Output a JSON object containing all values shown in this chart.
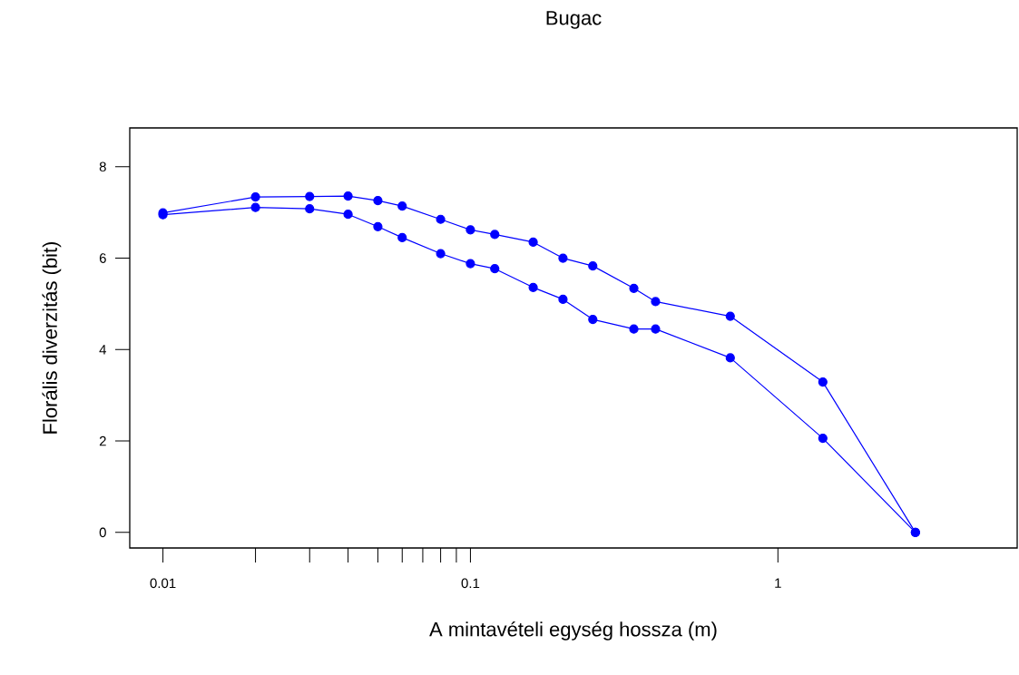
{
  "chart_data": {
    "type": "line",
    "title": "Bugac",
    "xlabel": "A mintavételi egység hossza (m)",
    "ylabel": "Florális diverzitás (bit)",
    "x": [
      0.01,
      0.02,
      0.03,
      0.04,
      0.05,
      0.06,
      0.08,
      0.1,
      0.12,
      0.16,
      0.2,
      0.25,
      0.34,
      0.4,
      0.7,
      1.4,
      2.8
    ],
    "series": [
      {
        "color": "#0000ff",
        "values": [
          6.99,
          7.34,
          7.35,
          7.36,
          7.26,
          7.14,
          6.85,
          6.62,
          6.52,
          6.35,
          6.0,
          5.83,
          5.34,
          5.05,
          4.73,
          3.29,
          0
        ]
      },
      {
        "color": "#0000ff",
        "values": [
          6.95,
          7.11,
          7.08,
          6.96,
          6.69,
          6.45,
          6.1,
          5.88,
          5.77,
          5.36,
          5.1,
          4.66,
          4.45,
          4.45,
          3.82,
          2.06,
          0
        ]
      }
    ],
    "log": "x",
    "marker": "circle",
    "line_style": "solid",
    "xlim": [
      0.0078,
      6.0
    ],
    "ylim": [
      -0.34,
      8.85
    ],
    "xticks": [
      {
        "value": 0.01,
        "label": "0.01"
      },
      {
        "value": 0.02,
        "label": null
      },
      {
        "value": 0.03,
        "label": null
      },
      {
        "value": 0.04,
        "label": null
      },
      {
        "value": 0.05,
        "label": null
      },
      {
        "value": 0.06,
        "label": null
      },
      {
        "value": 0.07,
        "label": null
      },
      {
        "value": 0.08,
        "label": null
      },
      {
        "value": 0.09,
        "label": null
      },
      {
        "value": 0.1,
        "label": "0.1"
      },
      {
        "value": 1,
        "label": "1"
      }
    ],
    "yticks": [
      0,
      2,
      4,
      6,
      8
    ]
  }
}
